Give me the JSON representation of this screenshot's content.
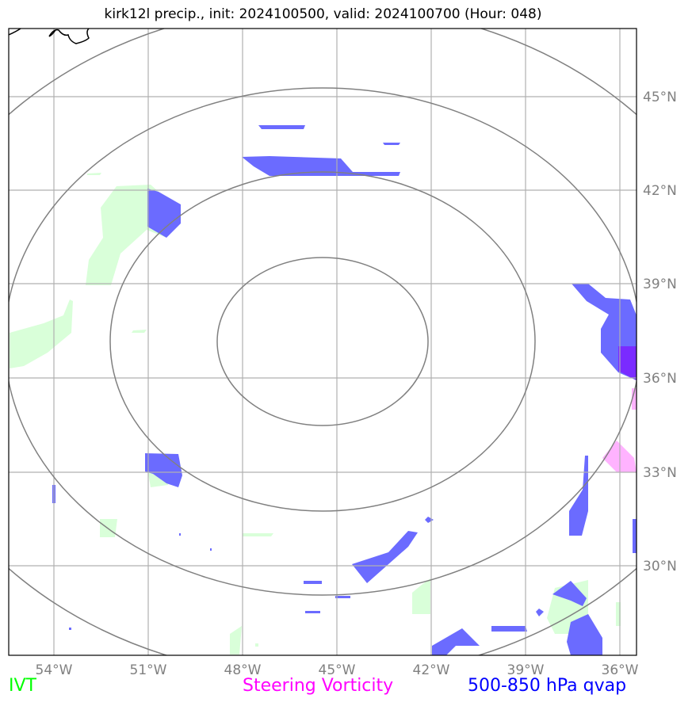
{
  "title": "kirk12l precip., init: 2024100500, valid: 2024100700 (Hour: 048)",
  "lon_labels": [
    "54°W",
    "51°W",
    "48°W",
    "45°W",
    "42°W",
    "39°W",
    "36°W"
  ],
  "lat_labels": [
    "45°N",
    "42°N",
    "39°N",
    "36°N",
    "33°N",
    "30°N"
  ],
  "legend": {
    "ivt": {
      "label": "IVT",
      "color": "#00ff00"
    },
    "vorticity": {
      "label": "Steering Vorticity",
      "color": "#ff00ff"
    },
    "qvap": {
      "label": "500-850 hPa qvap",
      "color": "#0000ff"
    }
  },
  "colors": {
    "grid": "#b0b0b0",
    "range_rings": "#808080",
    "tick_label": "#808080",
    "ivt_fill": "#d9ffd9",
    "vorticity_fill": "#ffb3ff",
    "qvap_fill": "#6b6bff",
    "qvap_strong_fill": "#7a2bff",
    "coastline": "#000000"
  }
}
